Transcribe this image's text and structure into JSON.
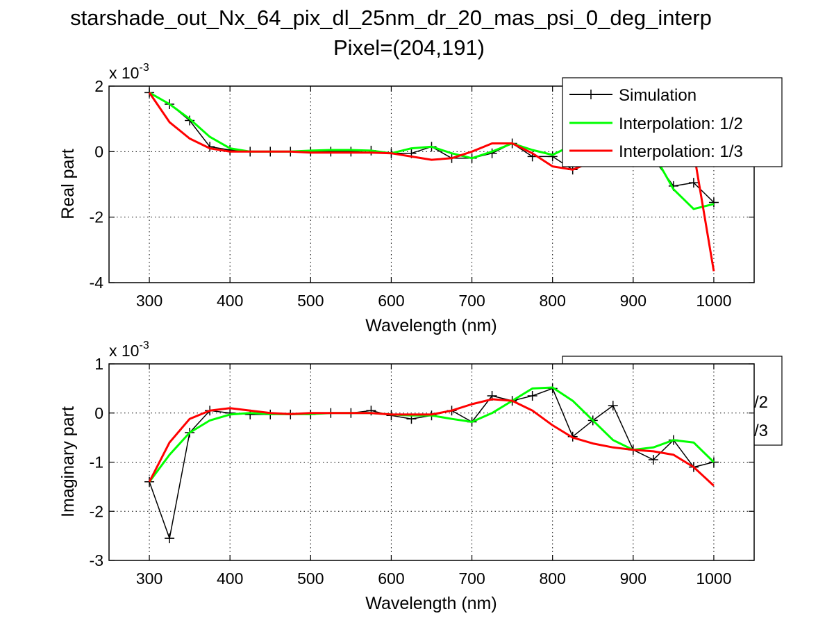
{
  "figure": {
    "title_line1": "starshade_out_Nx_64_pix_dl_25nm_dr_20_mas_psi_0_deg_interp",
    "title_line2": "Pixel=(204,191)"
  },
  "colors": {
    "simulation": "#000000",
    "interp_half": "#00ff00",
    "interp_third": "#ff0000",
    "grid": "#000000",
    "background": "#ffffff"
  },
  "chart_data": [
    {
      "type": "line",
      "panel": "top",
      "xlabel": "Wavelength (nm)",
      "ylabel": "Real part",
      "y_exponent_base": "x 10",
      "y_exponent_power": "-3",
      "xlim": [
        250,
        1050
      ],
      "ylim": [
        -4,
        2
      ],
      "xticks": [
        300,
        400,
        500,
        600,
        700,
        800,
        900,
        1000
      ],
      "yticks": [
        -4,
        -2,
        0,
        2
      ],
      "grid": true,
      "legend_position": "top-right",
      "legend": [
        "Simulation",
        "Interpolation: 1/2",
        "Interpolation: 1/3"
      ],
      "series": [
        {
          "name": "Simulation",
          "color": "#000000",
          "marker": "+",
          "x": [
            300,
            325,
            350,
            375,
            400,
            425,
            450,
            475,
            500,
            525,
            550,
            575,
            600,
            625,
            650,
            675,
            700,
            725,
            750,
            775,
            800,
            825,
            850,
            875,
            900,
            925,
            950,
            975,
            1000
          ],
          "y": [
            1.8,
            1.45,
            0.95,
            0.15,
            0.05,
            0.0,
            0.0,
            0.0,
            0.0,
            0.0,
            0.0,
            0.03,
            -0.05,
            -0.05,
            0.15,
            -0.2,
            -0.2,
            -0.05,
            0.25,
            -0.15,
            -0.15,
            -0.55,
            -0.3,
            0.15,
            0.05,
            -0.2,
            -1.05,
            -0.95,
            -1.55
          ]
        },
        {
          "name": "Interpolation: 1/2",
          "color": "#00ff00",
          "x": [
            300,
            325,
            350,
            375,
            400,
            425,
            450,
            475,
            500,
            525,
            550,
            575,
            600,
            625,
            650,
            675,
            700,
            725,
            750,
            775,
            800,
            825,
            850,
            875,
            900,
            925,
            950,
            975,
            1000
          ],
          "y": [
            1.8,
            1.45,
            1.0,
            0.45,
            0.1,
            0.0,
            0.0,
            0.0,
            0.03,
            0.05,
            0.05,
            0.03,
            -0.05,
            0.1,
            0.15,
            -0.05,
            -0.2,
            0.0,
            0.25,
            0.05,
            -0.1,
            0.2,
            0.15,
            0.25,
            0.2,
            -0.05,
            -1.15,
            -1.75,
            -1.6
          ]
        },
        {
          "name": "Interpolation: 1/3",
          "color": "#ff0000",
          "x": [
            300,
            325,
            350,
            375,
            400,
            425,
            450,
            475,
            500,
            525,
            550,
            575,
            600,
            625,
            650,
            675,
            700,
            725,
            750,
            775,
            800,
            825,
            850,
            875,
            900,
            925,
            950,
            975,
            1000
          ],
          "y": [
            1.8,
            0.9,
            0.4,
            0.1,
            0.0,
            0.0,
            0.0,
            0.0,
            -0.03,
            -0.03,
            -0.03,
            -0.03,
            -0.05,
            -0.15,
            -0.25,
            -0.2,
            0.0,
            0.25,
            0.25,
            -0.05,
            -0.45,
            -0.55,
            -0.3,
            0.1,
            0.3,
            0.2,
            0.2,
            0.0,
            -3.65
          ]
        }
      ]
    },
    {
      "type": "line",
      "panel": "bottom",
      "xlabel": "Wavelength (nm)",
      "ylabel": "Imaginary part",
      "y_exponent_base": "x 10",
      "y_exponent_power": "-3",
      "xlim": [
        250,
        1050
      ],
      "ylim": [
        -3,
        1
      ],
      "xticks": [
        300,
        400,
        500,
        600,
        700,
        800,
        900,
        1000
      ],
      "yticks": [
        -3,
        -2,
        -1,
        0,
        1
      ],
      "grid": true,
      "legend_position": "top-right (obscured)",
      "legend_visible_fragments": [
        "/2",
        "/3"
      ],
      "series": [
        {
          "name": "Simulation",
          "color": "#000000",
          "marker": "+",
          "x": [
            300,
            325,
            350,
            375,
            400,
            425,
            450,
            475,
            500,
            525,
            550,
            575,
            600,
            625,
            650,
            675,
            700,
            725,
            750,
            775,
            800,
            825,
            850,
            875,
            900,
            925,
            950,
            975,
            1000
          ],
          "y": [
            -1.4,
            -2.55,
            -0.4,
            0.05,
            0.0,
            -0.03,
            -0.03,
            -0.03,
            -0.03,
            0.0,
            0.0,
            0.05,
            -0.05,
            -0.12,
            -0.05,
            0.05,
            -0.18,
            0.35,
            0.25,
            0.35,
            0.5,
            -0.48,
            -0.15,
            0.15,
            -0.75,
            -0.95,
            -0.55,
            -1.1,
            -1.0
          ]
        },
        {
          "name": "Interpolation: 1/2",
          "color": "#00ff00",
          "x": [
            300,
            325,
            350,
            375,
            400,
            425,
            450,
            475,
            500,
            525,
            550,
            575,
            600,
            625,
            650,
            675,
            700,
            725,
            750,
            775,
            800,
            825,
            850,
            875,
            900,
            925,
            950,
            975,
            1000
          ],
          "y": [
            -1.4,
            -0.85,
            -0.4,
            -0.15,
            -0.03,
            0.0,
            -0.02,
            -0.02,
            -0.02,
            0.0,
            0.0,
            0.0,
            -0.03,
            -0.05,
            -0.05,
            -0.12,
            -0.18,
            0.0,
            0.25,
            0.5,
            0.52,
            0.25,
            -0.15,
            -0.55,
            -0.75,
            -0.7,
            -0.55,
            -0.6,
            -1.0
          ]
        },
        {
          "name": "Interpolation: 1/3",
          "color": "#ff0000",
          "x": [
            300,
            325,
            350,
            375,
            400,
            425,
            450,
            475,
            500,
            525,
            550,
            575,
            600,
            625,
            650,
            675,
            700,
            725,
            750,
            775,
            800,
            825,
            850,
            875,
            900,
            925,
            950,
            975,
            1000
          ],
          "y": [
            -1.4,
            -0.6,
            -0.12,
            0.05,
            0.1,
            0.05,
            0.0,
            -0.02,
            0.0,
            0.0,
            0.0,
            0.0,
            -0.03,
            -0.03,
            -0.03,
            0.05,
            0.18,
            0.28,
            0.25,
            0.05,
            -0.25,
            -0.5,
            -0.62,
            -0.7,
            -0.75,
            -0.78,
            -0.85,
            -1.1,
            -1.48
          ]
        }
      ]
    }
  ]
}
